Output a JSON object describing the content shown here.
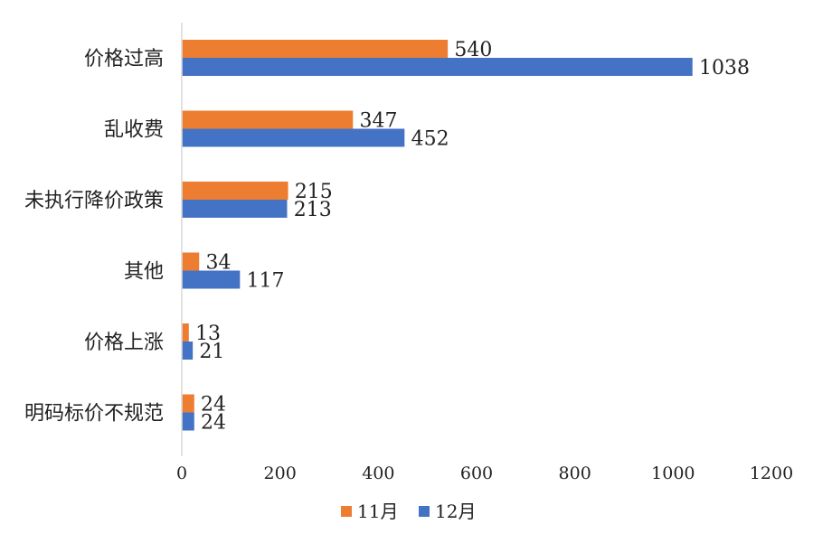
{
  "chart_data": {
    "type": "bar",
    "orientation": "horizontal",
    "categories": [
      "价格过高",
      "乱收费",
      "未执行降价政策",
      "其他",
      "价格上涨",
      "明码标价不规范"
    ],
    "series": [
      {
        "name": "11月",
        "color": "#ED7D31",
        "values": [
          540,
          347,
          215,
          34,
          13,
          24
        ],
        "labels": [
          "540",
          "347",
          "215",
          "34",
          "13",
          "24"
        ]
      },
      {
        "name": "12月",
        "color": "#4472C4",
        "values": [
          1038,
          452,
          213,
          117,
          21,
          24
        ],
        "labels": [
          "1038",
          "452",
          "213",
          "117",
          "21",
          "24"
        ]
      }
    ],
    "xlim": [
      0,
      1200
    ],
    "xticks": [
      0,
      200,
      400,
      600,
      800,
      1000,
      1200
    ],
    "xtick_labels": [
      "0",
      "200",
      "400",
      "600",
      "800",
      "1000",
      "1200"
    ],
    "grid": false,
    "legend_position": "bottom"
  }
}
